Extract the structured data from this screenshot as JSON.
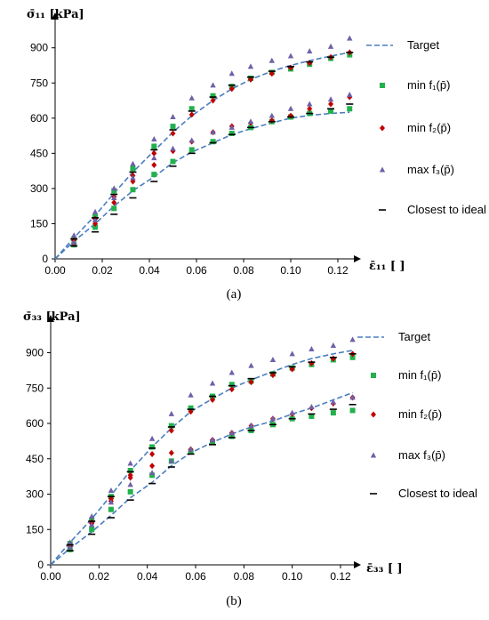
{
  "chart_data": [
    {
      "type": "scatter",
      "panel_label": "(a)",
      "ylabel": "σ̄₁₁  [kPa]",
      "xlabel": "ε̄₁₁ [ ]",
      "xlim": [
        0,
        0.13
      ],
      "ylim": [
        0,
        990
      ],
      "xticks": [
        "0.00",
        "0.02",
        "0.04",
        "0.06",
        "0.08",
        "0.10",
        "0.12"
      ],
      "yticks": [
        "0",
        "150",
        "300",
        "450",
        "600",
        "750",
        "900"
      ],
      "legend": [
        {
          "label": "Target"
        },
        {
          "label": "min  f₁(p̄)"
        },
        {
          "label": "min  f₂(p̄)"
        },
        {
          "label": "max  f₃(p̄)"
        },
        {
          "label": "Closest to ideal"
        }
      ],
      "series": [
        {
          "name": "Target",
          "marker": "dashed-line",
          "color": "#4a7ebf",
          "x": [
            0,
            0.008,
            0.017,
            0.025,
            0.033,
            0.042,
            0.05,
            0.058,
            0.067,
            0.075,
            0.083,
            0.092,
            0.1,
            0.108,
            0.117,
            0.125
          ],
          "y": [
            0,
            90,
            185,
            280,
            370,
            460,
            540,
            610,
            675,
            725,
            765,
            800,
            825,
            845,
            865,
            880
          ]
        },
        {
          "name": "Target",
          "marker": "dashed-line",
          "color": "#4a7ebf",
          "x": [
            0,
            0.008,
            0.017,
            0.025,
            0.033,
            0.042,
            0.05,
            0.058,
            0.067,
            0.075,
            0.083,
            0.092,
            0.1,
            0.108,
            0.117,
            0.125
          ],
          "y": [
            0,
            75,
            150,
            225,
            290,
            350,
            410,
            455,
            495,
            530,
            555,
            580,
            600,
            612,
            620,
            625
          ]
        },
        {
          "name": "min  f₁(p̄)",
          "marker": "square",
          "color": "#22b14c",
          "x": [
            0.008,
            0.017,
            0.025,
            0.033,
            0.042,
            0.05,
            0.058,
            0.067,
            0.075,
            0.083,
            0.092,
            0.1,
            0.108,
            0.117,
            0.125
          ],
          "y": [
            85,
            180,
            290,
            385,
            480,
            565,
            640,
            695,
            735,
            770,
            795,
            810,
            830,
            855,
            870
          ]
        },
        {
          "name": "min  f₁(p̄)",
          "marker": "square",
          "color": "#22b14c",
          "x": [
            0.008,
            0.017,
            0.025,
            0.033,
            0.042,
            0.05,
            0.058,
            0.067,
            0.075,
            0.083,
            0.092,
            0.1,
            0.108,
            0.117,
            0.125
          ],
          "y": [
            60,
            135,
            215,
            295,
            360,
            415,
            465,
            500,
            535,
            560,
            585,
            605,
            620,
            630,
            640
          ]
        },
        {
          "name": "min  f₂(p̄)",
          "marker": "diamond",
          "color": "#c00000",
          "x": [
            0.008,
            0.017,
            0.025,
            0.033,
            0.042,
            0.05,
            0.058,
            0.067,
            0.075,
            0.083,
            0.092,
            0.1,
            0.108,
            0.117,
            0.125
          ],
          "y": [
            80,
            170,
            265,
            355,
            450,
            535,
            615,
            675,
            725,
            765,
            790,
            815,
            835,
            860,
            880
          ]
        },
        {
          "name": "min  f₂(p̄)",
          "marker": "diamond",
          "color": "#c00000",
          "x": [
            0.008,
            0.017,
            0.025,
            0.033,
            0.042,
            0.05,
            0.058,
            0.067,
            0.075,
            0.083,
            0.092,
            0.1,
            0.108,
            0.117,
            0.125
          ],
          "y": [
            65,
            150,
            240,
            330,
            400,
            460,
            500,
            540,
            565,
            580,
            590,
            610,
            640,
            660,
            690
          ]
        },
        {
          "name": "max  f₃(p̄)",
          "marker": "triangle",
          "color": "#7060a8",
          "x": [
            0.008,
            0.017,
            0.025,
            0.033,
            0.042,
            0.05,
            0.058,
            0.067,
            0.075,
            0.083,
            0.092,
            0.1,
            0.108,
            0.117,
            0.125
          ],
          "y": [
            100,
            200,
            300,
            405,
            510,
            605,
            685,
            740,
            790,
            820,
            845,
            865,
            885,
            905,
            940
          ]
        },
        {
          "name": "max  f₃(p̄)",
          "marker": "triangle",
          "color": "#7060a8",
          "x": [
            0.008,
            0.017,
            0.025,
            0.033,
            0.042,
            0.05,
            0.058,
            0.067,
            0.075,
            0.083,
            0.092,
            0.1,
            0.108,
            0.117,
            0.125
          ],
          "y": [
            70,
            165,
            260,
            345,
            430,
            470,
            505,
            540,
            560,
            585,
            610,
            640,
            660,
            680,
            700
          ]
        },
        {
          "name": "Closest to ideal",
          "marker": "dash",
          "color": "#000000",
          "x": [
            0.008,
            0.017,
            0.025,
            0.033,
            0.042,
            0.05,
            0.058,
            0.067,
            0.075,
            0.083,
            0.092,
            0.1,
            0.108,
            0.117,
            0.125
          ],
          "y": [
            85,
            175,
            275,
            370,
            465,
            550,
            630,
            690,
            740,
            775,
            800,
            820,
            840,
            860,
            880
          ]
        },
        {
          "name": "Closest to ideal",
          "marker": "dash",
          "color": "#000000",
          "x": [
            0.008,
            0.017,
            0.025,
            0.033,
            0.042,
            0.05,
            0.058,
            0.067,
            0.075,
            0.083,
            0.092,
            0.1,
            0.108,
            0.117,
            0.125
          ],
          "y": [
            55,
            115,
            190,
            260,
            330,
            395,
            450,
            495,
            530,
            560,
            585,
            605,
            620,
            640,
            660
          ]
        }
      ]
    },
    {
      "type": "scatter",
      "panel_label": "(b)",
      "ylabel": "σ̄₃₃  [kPa]",
      "xlabel": "ε̄₃₃ [ ]",
      "xlim": [
        0,
        0.13
      ],
      "ylim": [
        0,
        1000
      ],
      "xticks": [
        "0.00",
        "0.02",
        "0.04",
        "0.06",
        "0.08",
        "0.10",
        "0.12"
      ],
      "yticks": [
        "0",
        "150",
        "300",
        "450",
        "600",
        "750",
        "900"
      ],
      "legend": [
        {
          "label": "Target"
        },
        {
          "label": "min  f₁(p̄)"
        },
        {
          "label": "min  f₂(p̄)"
        },
        {
          "label": "max  f₃(p̄)"
        },
        {
          "label": "Closest to ideal"
        }
      ],
      "series": [
        {
          "name": "Target",
          "marker": "dashed-line",
          "color": "#4a7ebf",
          "x": [
            0,
            0.008,
            0.017,
            0.025,
            0.033,
            0.042,
            0.05,
            0.058,
            0.067,
            0.075,
            0.083,
            0.092,
            0.1,
            0.108,
            0.117,
            0.125
          ],
          "y": [
            0,
            95,
            195,
            295,
            400,
            500,
            580,
            650,
            705,
            750,
            785,
            820,
            850,
            875,
            895,
            910
          ]
        },
        {
          "name": "Target",
          "marker": "dashed-line",
          "color": "#4a7ebf",
          "x": [
            0,
            0.008,
            0.017,
            0.025,
            0.033,
            0.042,
            0.05,
            0.058,
            0.067,
            0.075,
            0.083,
            0.092,
            0.1,
            0.108,
            0.117,
            0.125
          ],
          "y": [
            0,
            70,
            140,
            210,
            285,
            350,
            420,
            475,
            520,
            555,
            585,
            610,
            640,
            665,
            700,
            730
          ]
        },
        {
          "name": "min  f₁(p̄)",
          "marker": "square",
          "color": "#22b14c",
          "x": [
            0.008,
            0.017,
            0.025,
            0.033,
            0.042,
            0.05,
            0.058,
            0.067,
            0.075,
            0.083,
            0.092,
            0.1,
            0.108,
            0.117,
            0.125
          ],
          "y": [
            90,
            190,
            290,
            400,
            500,
            590,
            665,
            715,
            765,
            780,
            810,
            835,
            850,
            870,
            880
          ]
        },
        {
          "name": "min  f₁(p̄)",
          "marker": "square",
          "color": "#22b14c",
          "x": [
            0.008,
            0.017,
            0.025,
            0.033,
            0.042,
            0.05,
            0.058,
            0.067,
            0.075,
            0.083,
            0.092,
            0.1,
            0.108,
            0.117,
            0.125
          ],
          "y": [
            65,
            150,
            235,
            310,
            380,
            440,
            480,
            520,
            545,
            570,
            595,
            620,
            630,
            645,
            655
          ]
        },
        {
          "name": "min  f₂(p̄)",
          "marker": "diamond",
          "color": "#c00000",
          "x": [
            0.008,
            0.017,
            0.025,
            0.033,
            0.042,
            0.05,
            0.058,
            0.067,
            0.075,
            0.083,
            0.092,
            0.1,
            0.108,
            0.117,
            0.125
          ],
          "y": [
            85,
            175,
            270,
            370,
            470,
            570,
            650,
            700,
            745,
            775,
            805,
            830,
            855,
            875,
            895
          ]
        },
        {
          "name": "min  f₂(p̄)",
          "marker": "diamond",
          "color": "#c00000",
          "x": [
            0.008,
            0.017,
            0.025,
            0.033,
            0.042,
            0.05,
            0.058,
            0.067,
            0.075,
            0.083,
            0.092,
            0.1,
            0.108,
            0.117,
            0.125
          ],
          "y": [
            80,
            180,
            280,
            380,
            420,
            475,
            490,
            530,
            560,
            590,
            620,
            640,
            665,
            685,
            710
          ]
        },
        {
          "name": "max  f₃(p̄)",
          "marker": "triangle",
          "color": "#7060a8",
          "x": [
            0.008,
            0.017,
            0.025,
            0.033,
            0.042,
            0.05,
            0.058,
            0.067,
            0.075,
            0.083,
            0.092,
            0.1,
            0.108,
            0.117,
            0.125
          ],
          "y": [
            95,
            205,
            315,
            430,
            535,
            640,
            720,
            770,
            815,
            845,
            870,
            895,
            915,
            930,
            955
          ]
        },
        {
          "name": "max  f₃(p̄)",
          "marker": "triangle",
          "color": "#7060a8",
          "x": [
            0.008,
            0.017,
            0.025,
            0.033,
            0.042,
            0.05,
            0.058,
            0.067,
            0.075,
            0.083,
            0.092,
            0.1,
            0.108,
            0.117,
            0.125
          ],
          "y": [
            75,
            170,
            265,
            340,
            390,
            440,
            490,
            530,
            560,
            590,
            620,
            645,
            670,
            690,
            710
          ]
        },
        {
          "name": "Closest to ideal",
          "marker": "dash",
          "color": "#000000",
          "x": [
            0.008,
            0.017,
            0.025,
            0.033,
            0.042,
            0.05,
            0.058,
            0.067,
            0.075,
            0.083,
            0.092,
            0.1,
            0.108,
            0.117,
            0.125
          ],
          "y": [
            85,
            185,
            290,
            395,
            495,
            585,
            660,
            715,
            760,
            790,
            815,
            840,
            860,
            880,
            895
          ]
        },
        {
          "name": "Closest to ideal",
          "marker": "dash",
          "color": "#000000",
          "x": [
            0.008,
            0.017,
            0.025,
            0.033,
            0.042,
            0.05,
            0.058,
            0.067,
            0.075,
            0.083,
            0.092,
            0.1,
            0.108,
            0.117,
            0.125
          ],
          "y": [
            60,
            130,
            200,
            275,
            345,
            415,
            470,
            510,
            540,
            570,
            595,
            620,
            640,
            660,
            680
          ]
        }
      ]
    }
  ]
}
